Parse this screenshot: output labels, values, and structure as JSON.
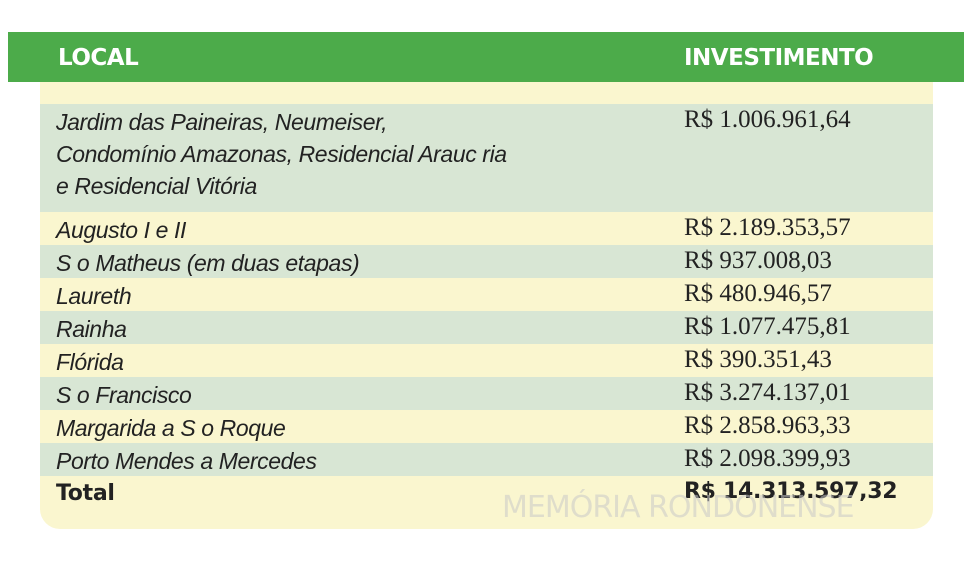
{
  "table": {
    "header_local": "LOCAL",
    "header_investment": "INVESTIMENTO",
    "rows": [
      {
        "local_lines": [
          "Jardim das Paineiras, Neumeiser,",
          "Condomínio Amazonas, Residencial Arauc  ria",
          "e Residencial Vitória"
        ],
        "value": "R$ 1.006.961,64"
      },
      {
        "local_lines": [
          "Augusto I e II"
        ],
        "value": "R$ 2.189.353,57"
      },
      {
        "local_lines": [
          "S  o Matheus (em duas etapas)"
        ],
        "value": "R$ 937.008,03"
      },
      {
        "local_lines": [
          "Laureth"
        ],
        "value": "R$ 480.946,57"
      },
      {
        "local_lines": [
          "Rainha"
        ],
        "value": "R$ 1.077.475,81"
      },
      {
        "local_lines": [
          "Flórida"
        ],
        "value": "R$ 390.351,43"
      },
      {
        "local_lines": [
          "S  o Francisco"
        ],
        "value": "R$ 3.274.137,01"
      },
      {
        "local_lines": [
          "Margarida a S  o Roque"
        ],
        "value": "R$ 2.858.963,33"
      },
      {
        "local_lines": [
          "Porto Mendes a Mercedes"
        ],
        "value": "R$ 2.098.399,93"
      }
    ],
    "total_label": "Total",
    "total_value": "R$ 14.313.597,32"
  },
  "watermark": "MEMÓRIA RONDONENSE",
  "colors": {
    "header_green": "#4cab4a",
    "row_shaded": "#d8e6d4",
    "row_plain": "#faf6cf"
  }
}
